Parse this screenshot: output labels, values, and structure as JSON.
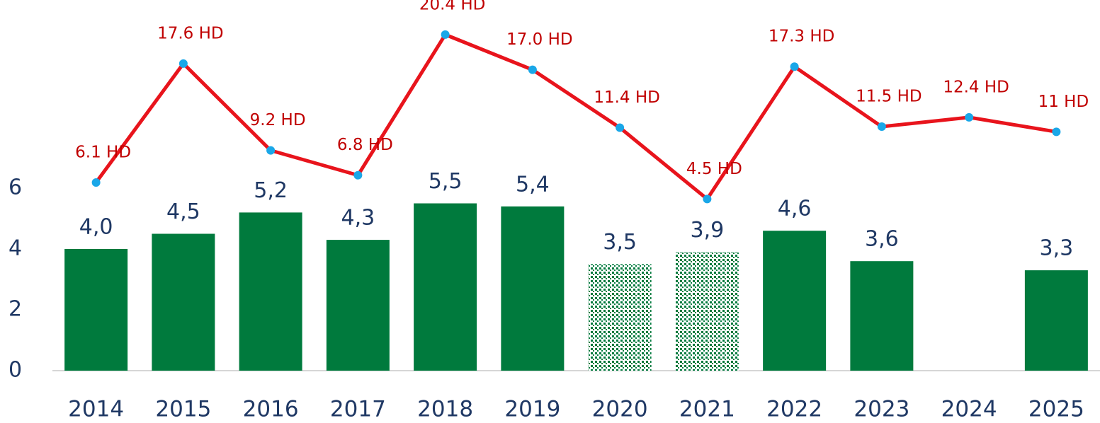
{
  "chart_data": {
    "type": "bar",
    "categories": [
      "2014",
      "2015",
      "2016",
      "2017",
      "2018",
      "2019",
      "2020",
      "2021",
      "2022",
      "2023",
      "2024",
      "2025"
    ],
    "series": [
      {
        "color": "#007a3d",
        "hatched": [
          false,
          false,
          false,
          false,
          false,
          false,
          true,
          true,
          false,
          false,
          false,
          false
        ],
        "values": [
          4.0,
          4.5,
          5.2,
          4.3,
          5.5,
          5.4,
          3.5,
          3.9,
          4.6,
          3.6,
          null,
          3.3
        ],
        "value_labels": [
          "4,0",
          "4,5",
          "5,2",
          "4,3",
          "5,5",
          "5,4",
          "3,5",
          "3,9",
          "4,6",
          "3,6",
          null,
          "3,3"
        ]
      },
      {
        "type": "line",
        "axis": "y2",
        "color": "#e8141c",
        "marker_color": "#1aa7e8",
        "label_color": "#c00000",
        "values": [
          6.1,
          17.6,
          9.2,
          6.8,
          20.4,
          17.0,
          11.4,
          4.5,
          17.3,
          11.5,
          12.4,
          11
        ],
        "value_labels": [
          "6.1 HD",
          "17.6 HD",
          "9.2 HD",
          "6.8 HD",
          "20.4 HD",
          "17.0 HD",
          "11.4 HD",
          "4.5 HD",
          "17.3 HD",
          "11.5 HD",
          "12.4 HD",
          "11 HD"
        ]
      }
    ],
    "ylim": [
      0,
      12
    ],
    "yticks": [
      0,
      2,
      4,
      6
    ],
    "y2lim": [
      -12.1,
      23.2
    ]
  }
}
